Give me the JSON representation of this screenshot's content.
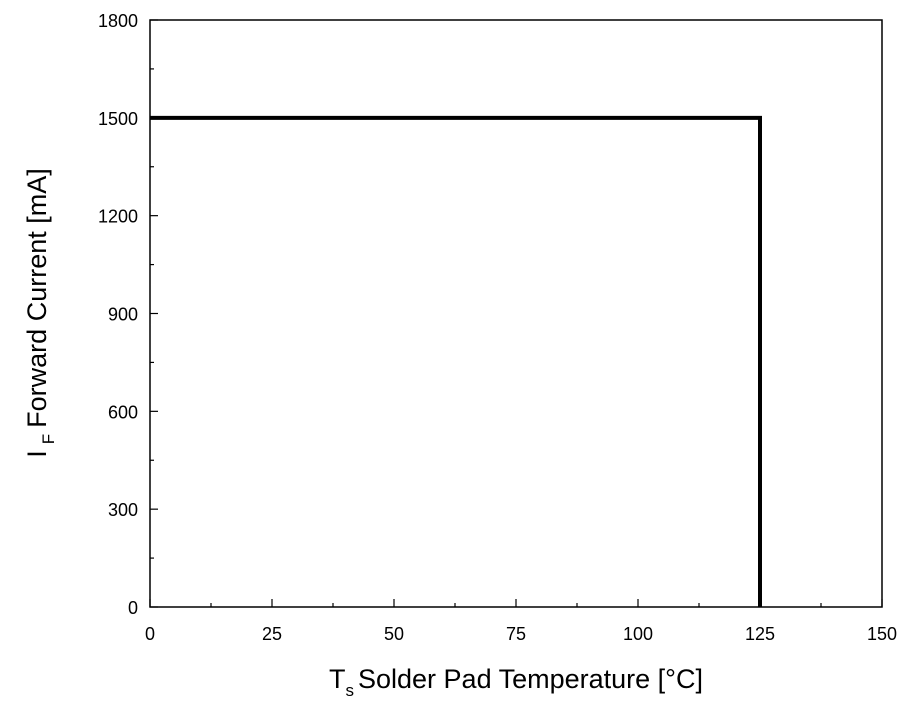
{
  "chart_data": {
    "type": "line",
    "x": [
      0,
      125,
      125
    ],
    "values": [
      1500,
      1500,
      0
    ],
    "color": "#000000",
    "xlabel": {
      "main": "T",
      "sub": "s",
      "rest": "Solder Pad Temperature [°C]"
    },
    "ylabel": {
      "main": "I",
      "sub": "F",
      "rest": "Forward Current [mA]"
    },
    "xlim": [
      0,
      150
    ],
    "xticks": [
      0,
      25,
      50,
      75,
      100,
      125,
      150
    ],
    "xminorticks": [
      12.5,
      37.5,
      62.5,
      87.5,
      112.5,
      137.5
    ],
    "ylim": [
      0,
      1800
    ],
    "yticks": [
      0,
      300,
      600,
      900,
      1200,
      1500,
      1800
    ],
    "yminorticks": [
      150,
      450,
      750,
      1050,
      1350,
      1650
    ],
    "grid": false
  }
}
